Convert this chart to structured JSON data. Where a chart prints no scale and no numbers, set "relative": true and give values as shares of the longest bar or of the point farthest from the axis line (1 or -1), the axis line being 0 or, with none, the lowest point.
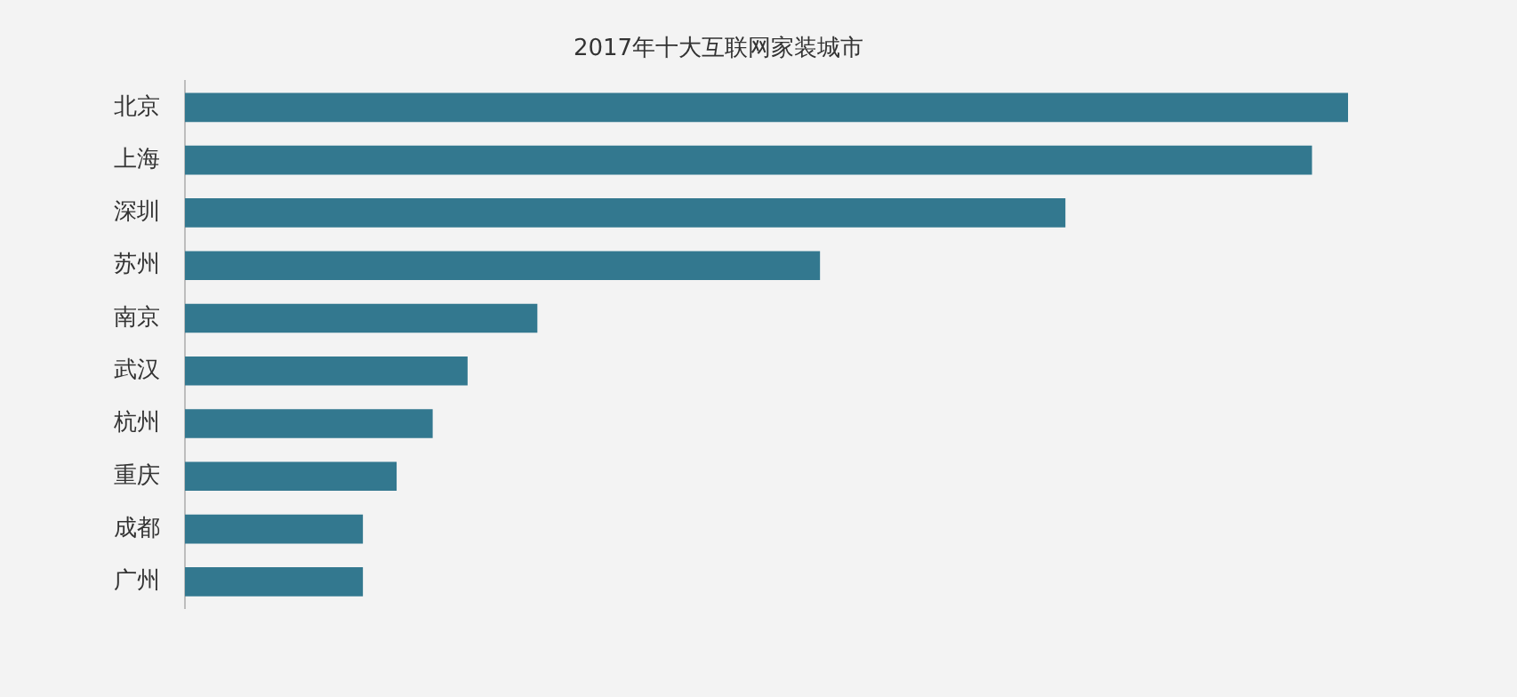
{
  "chart_data": {
    "type": "bar",
    "orientation": "horizontal",
    "relative": true,
    "title": "2017年十大互联网家装城市",
    "categories": [
      "北京",
      "上海",
      "深圳",
      "苏州",
      "南京",
      "武汉",
      "杭州",
      "重庆",
      "成都",
      "广州"
    ],
    "values": [
      1,
      0.969,
      0.757,
      0.546,
      0.303,
      0.243,
      0.213,
      0.182,
      0.153,
      0.153
    ],
    "color": "#33788f"
  }
}
